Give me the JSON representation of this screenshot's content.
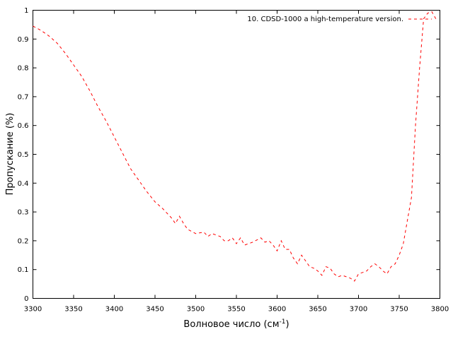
{
  "chart_data": {
    "type": "line",
    "xlabel": "Волновое число (см",
    "xlabel_sup": "-1",
    "xlabel_end": ")",
    "ylabel": "Пропускание (%)",
    "xlim": [
      3300,
      3800
    ],
    "ylim": [
      0,
      1
    ],
    "x_ticks": [
      3300,
      3350,
      3400,
      3450,
      3500,
      3550,
      3600,
      3650,
      3700,
      3750,
      3800
    ],
    "y_ticks": [
      0,
      0.1,
      0.2,
      0.3,
      0.4,
      0.5,
      0.6,
      0.7,
      0.8,
      0.9,
      1
    ],
    "y_tick_labels": [
      "0",
      "0.1",
      "0.2",
      "0.3",
      "0.4",
      "0.5",
      "0.6",
      "0.7",
      "0.8",
      "0.9",
      "1"
    ],
    "grid": false,
    "legend_position": "top-right",
    "series": [
      {
        "name": "10. CDSD-1000 a high-temperature version.",
        "color": "#ff0000",
        "line_style": "dashed",
        "x": [
          3300,
          3310,
          3320,
          3330,
          3340,
          3350,
          3360,
          3370,
          3380,
          3390,
          3400,
          3410,
          3420,
          3430,
          3440,
          3450,
          3460,
          3470,
          3475,
          3480,
          3485,
          3490,
          3500,
          3510,
          3515,
          3520,
          3530,
          3535,
          3540,
          3545,
          3550,
          3555,
          3560,
          3570,
          3580,
          3585,
          3590,
          3595,
          3600,
          3605,
          3610,
          3615,
          3620,
          3625,
          3630,
          3635,
          3640,
          3645,
          3650,
          3655,
          3660,
          3665,
          3670,
          3675,
          3680,
          3685,
          3690,
          3695,
          3700,
          3705,
          3710,
          3715,
          3720,
          3725,
          3730,
          3735,
          3740,
          3745,
          3750,
          3755,
          3760,
          3765,
          3770,
          3775,
          3780,
          3785,
          3790,
          3795
        ],
        "y": [
          0.945,
          0.93,
          0.91,
          0.885,
          0.85,
          0.81,
          0.77,
          0.72,
          0.665,
          0.615,
          0.56,
          0.505,
          0.45,
          0.41,
          0.37,
          0.335,
          0.31,
          0.28,
          0.26,
          0.285,
          0.26,
          0.24,
          0.225,
          0.23,
          0.215,
          0.225,
          0.215,
          0.2,
          0.2,
          0.21,
          0.19,
          0.21,
          0.185,
          0.195,
          0.21,
          0.195,
          0.2,
          0.185,
          0.165,
          0.2,
          0.17,
          0.17,
          0.14,
          0.12,
          0.15,
          0.13,
          0.11,
          0.105,
          0.095,
          0.08,
          0.11,
          0.105,
          0.085,
          0.075,
          0.08,
          0.075,
          0.07,
          0.06,
          0.085,
          0.09,
          0.095,
          0.11,
          0.12,
          0.11,
          0.095,
          0.085,
          0.11,
          0.12,
          0.15,
          0.19,
          0.27,
          0.35,
          0.6,
          0.8,
          0.97,
          0.99,
          0.995,
          0.97
        ]
      }
    ]
  }
}
